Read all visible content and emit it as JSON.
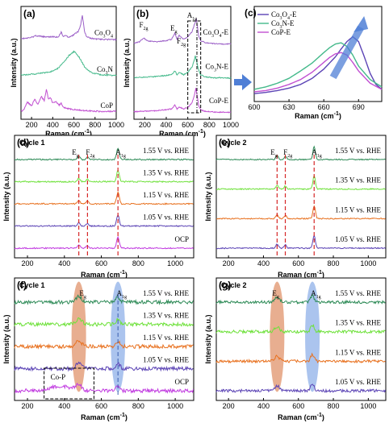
{
  "colors": {
    "purple": "#9b5fc7",
    "green": "#43b98a",
    "magenta": "#c14fd1",
    "dgreen": "#2e8b57",
    "lgreen": "#6ee13a",
    "orange": "#e8711f",
    "indigo": "#5b43b5",
    "violet": "#c13be0",
    "blue_arrow": "#4f7fd6",
    "red_dash": "#d62728",
    "ellipse_orange": "#e0936b",
    "ellipse_blue": "#8fb0e8"
  },
  "chart_data": [
    {
      "id": "a",
      "type": "line",
      "panel_letter": "(a)",
      "xlabel": "Raman (cm",
      "xlabel_sup": "-1",
      "xlabel_end": ")",
      "ylabel": "Intensity (a.u.)",
      "xlim": [
        100,
        1000
      ],
      "xticks": [
        200,
        400,
        600,
        800,
        1000
      ],
      "series": [
        {
          "name": "Co3O4",
          "name_main": "Co",
          "name_sub1": "3",
          "name_mid": "O",
          "name_sub2": "4",
          "color": "purple",
          "offset": 2.0,
          "x": [
            100,
            150,
            200,
            250,
            300,
            350,
            400,
            450,
            480,
            500,
            520,
            550,
            600,
            640,
            660,
            680,
            690,
            700,
            720,
            750,
            800,
            850,
            900,
            950,
            1000
          ],
          "y": [
            0.05,
            0.08,
            0.12,
            0.18,
            0.15,
            0.12,
            0.14,
            0.12,
            0.32,
            0.15,
            0.2,
            0.12,
            0.22,
            0.35,
            0.55,
            1.0,
            0.7,
            0.35,
            0.15,
            0.08,
            0.05,
            0.03,
            0.02,
            0.02,
            0.02
          ]
        },
        {
          "name": "Co3N",
          "name_main": "Co",
          "name_sub1": "3",
          "name_mid": "N",
          "name_sub2": "",
          "color": "green",
          "offset": 1.0,
          "x": [
            100,
            150,
            200,
            250,
            300,
            350,
            400,
            450,
            500,
            550,
            580,
            600,
            620,
            650,
            680,
            700,
            750,
            800,
            850,
            900,
            950,
            1000
          ],
          "y": [
            0.05,
            0.06,
            0.08,
            0.1,
            0.12,
            0.15,
            0.2,
            0.3,
            0.5,
            0.75,
            0.85,
            0.9,
            0.85,
            0.7,
            0.5,
            0.35,
            0.18,
            0.1,
            0.06,
            0.05,
            0.04,
            0.04
          ]
        },
        {
          "name": "CoP",
          "name_main": "Co",
          "name_sub1": "",
          "name_mid": "P",
          "name_sub2": "",
          "color": "magenta",
          "offset": 0.0,
          "x": [
            100,
            130,
            160,
            200,
            230,
            260,
            290,
            320,
            340,
            360,
            380,
            400,
            430,
            460,
            480,
            500,
            550,
            600,
            650,
            700,
            750,
            800,
            850,
            900,
            950,
            1000
          ],
          "y": [
            0.05,
            0.12,
            0.4,
            0.25,
            0.5,
            0.3,
            0.6,
            0.45,
            0.85,
            0.5,
            0.55,
            0.35,
            0.42,
            0.28,
            0.35,
            0.2,
            0.15,
            0.12,
            0.1,
            0.08,
            0.07,
            0.06,
            0.05,
            0.05,
            0.05,
            0.05
          ]
        }
      ]
    },
    {
      "id": "b",
      "type": "line",
      "panel_letter": "(b)",
      "xlabel": "Raman (cm",
      "xlabel_sup": "-1",
      "xlabel_end": ")",
      "ylabel": "Intensity (a.u.)",
      "xlim": [
        100,
        1000
      ],
      "xticks": [
        200,
        400,
        600,
        800,
        1000
      ],
      "peak_labels": [
        "F",
        "2g",
        "E",
        "g",
        "F",
        "2g",
        "A",
        "1g"
      ],
      "series": [
        {
          "name": "Co3O4-E",
          "name_main": "Co",
          "name_sub1": "3",
          "name_mid": "O",
          "name_sub2": "4",
          "name_end": "-E",
          "color": "purple",
          "offset": 2.0,
          "x": [
            100,
            150,
            190,
            220,
            260,
            300,
            350,
            400,
            450,
            480,
            500,
            520,
            560,
            600,
            640,
            660,
            680,
            690,
            700,
            720,
            760,
            800,
            850,
            900,
            950,
            1000
          ],
          "y": [
            0.05,
            0.1,
            0.25,
            0.15,
            0.12,
            0.1,
            0.12,
            0.15,
            0.2,
            0.45,
            0.2,
            0.35,
            0.2,
            0.3,
            0.5,
            0.75,
            1.0,
            0.7,
            0.35,
            0.15,
            0.07,
            0.05,
            0.03,
            0.02,
            0.02,
            0.02
          ]
        },
        {
          "name": "Co3N-E",
          "name_main": "Co",
          "name_sub1": "3",
          "name_mid": "N",
          "name_sub2": "",
          "name_end": "-E",
          "color": "green",
          "offset": 1.0,
          "x": [
            100,
            150,
            200,
            250,
            300,
            350,
            400,
            450,
            480,
            500,
            520,
            560,
            600,
            640,
            660,
            670,
            680,
            700,
            720,
            760,
            800,
            850,
            900,
            950,
            1000
          ],
          "y": [
            0.04,
            0.05,
            0.06,
            0.07,
            0.08,
            0.1,
            0.12,
            0.15,
            0.3,
            0.15,
            0.25,
            0.15,
            0.25,
            0.45,
            0.7,
            0.9,
            0.7,
            0.35,
            0.15,
            0.07,
            0.05,
            0.03,
            0.03,
            0.02,
            0.02
          ]
        },
        {
          "name": "CoP-E",
          "name_main": "Co",
          "name_sub1": "",
          "name_mid": "P",
          "name_sub2": "",
          "name_end": "-E",
          "color": "magenta",
          "offset": 0.0,
          "x": [
            100,
            150,
            200,
            250,
            300,
            350,
            400,
            450,
            480,
            500,
            520,
            560,
            600,
            640,
            660,
            675,
            690,
            700,
            720,
            760,
            800,
            850,
            900,
            950,
            1000
          ],
          "y": [
            0.04,
            0.05,
            0.06,
            0.07,
            0.08,
            0.1,
            0.12,
            0.15,
            0.3,
            0.15,
            0.22,
            0.15,
            0.2,
            0.4,
            0.65,
            0.95,
            0.6,
            0.3,
            0.12,
            0.06,
            0.04,
            0.03,
            0.02,
            0.02,
            0.02
          ]
        }
      ]
    },
    {
      "id": "c",
      "type": "line",
      "panel_letter": "(c)",
      "xlabel": "Raman (cm",
      "xlabel_sup": "-1",
      "xlabel_end": ")",
      "xlim": [
        600,
        710
      ],
      "xticks": [
        600,
        630,
        660,
        690
      ],
      "legend_position": "top-left",
      "series": [
        {
          "name": "Co3O4-E",
          "name_main": "Co",
          "name_sub1": "3",
          "name_mid": "O",
          "name_sub2": "4",
          "name_end": "-E",
          "color": "indigo",
          "x": [
            600,
            610,
            620,
            630,
            640,
            650,
            660,
            670,
            675,
            680,
            685,
            690,
            695,
            700,
            705,
            710
          ],
          "y": [
            0.05,
            0.07,
            0.1,
            0.14,
            0.2,
            0.3,
            0.45,
            0.65,
            0.78,
            0.9,
            0.98,
            0.9,
            0.65,
            0.38,
            0.2,
            0.12
          ]
        },
        {
          "name": "Co3N-E",
          "name_main": "Co",
          "name_sub1": "3",
          "name_mid": "N",
          "name_sub2": "",
          "name_end": "-E",
          "color": "green",
          "x": [
            600,
            610,
            620,
            630,
            640,
            650,
            660,
            665,
            670,
            675,
            680,
            685,
            690,
            700,
            710
          ],
          "y": [
            0.12,
            0.16,
            0.22,
            0.3,
            0.42,
            0.55,
            0.72,
            0.8,
            0.86,
            0.88,
            0.82,
            0.68,
            0.5,
            0.28,
            0.16
          ]
        },
        {
          "name": "CoP-E",
          "name_main": "Co",
          "name_sub1": "",
          "name_mid": "P",
          "name_sub2": "",
          "name_end": "-E",
          "color": "magenta",
          "x": [
            600,
            610,
            620,
            630,
            640,
            650,
            660,
            665,
            670,
            675,
            680,
            685,
            690,
            700,
            710
          ],
          "y": [
            0.08,
            0.1,
            0.14,
            0.2,
            0.28,
            0.4,
            0.56,
            0.64,
            0.7,
            0.72,
            0.68,
            0.56,
            0.42,
            0.22,
            0.12
          ]
        }
      ]
    },
    {
      "id": "d",
      "type": "line",
      "panel_letter": "(d)",
      "cycle_label": "Cycle 1",
      "xlabel": "Raman (cm",
      "xlabel_sup": "-1",
      "xlabel_end": ")",
      "ylabel": "Intensity (a.u.)",
      "xlim": [
        130,
        1100
      ],
      "xticks": [
        200,
        400,
        600,
        800,
        1000
      ],
      "peak_labels": [
        "E",
        "g",
        "F",
        "2g",
        "A",
        "1g"
      ],
      "peak_lines_x": [
        478,
        525,
        690
      ],
      "series": [
        {
          "name": "1.55 V vs. RHE",
          "color": "dgreen"
        },
        {
          "name": "1.35 V vs. RHE",
          "color": "lgreen"
        },
        {
          "name": "1.15 V vs. RHE",
          "color": "orange"
        },
        {
          "name": "1.05 V vs. RHE",
          "color": "indigo"
        },
        {
          "name": "OCP",
          "color": "violet"
        }
      ]
    },
    {
      "id": "e",
      "type": "line",
      "panel_letter": "(e)",
      "cycle_label": "Cycle 2",
      "xlabel": "Raman (cm",
      "xlabel_sup": "-1",
      "xlabel_end": ")",
      "ylabel": "Intensity (a.u.)",
      "xlim": [
        130,
        1100
      ],
      "xticks": [
        200,
        400,
        600,
        800,
        1000
      ],
      "peak_labels": [
        "E",
        "g",
        "F",
        "2g",
        "A",
        "1g"
      ],
      "peak_lines_x": [
        478,
        525,
        690
      ],
      "series": [
        {
          "name": "1.55 V vs. RHE",
          "color": "dgreen"
        },
        {
          "name": "1.35 V vs. RHE",
          "color": "lgreen"
        },
        {
          "name": "1.15 V vs. RHE",
          "color": "orange"
        },
        {
          "name": "1.05 V vs. RHE",
          "color": "indigo"
        }
      ]
    },
    {
      "id": "f",
      "type": "line",
      "panel_letter": "(f)",
      "cycle_label": "Cycle 1",
      "xlabel": "Raman (cm",
      "xlabel_sup": "-1",
      "xlabel_end": ")",
      "ylabel": "Intensity (a.u.)",
      "xlim": [
        130,
        1100
      ],
      "xticks": [
        200,
        400,
        600,
        800,
        1000
      ],
      "peak_labels": [
        "E",
        "g",
        "A",
        "1g"
      ],
      "annotation": "Co-P",
      "series": [
        {
          "name": "1.55 V vs. RHE",
          "color": "dgreen"
        },
        {
          "name": "1.35 V vs. RHE",
          "color": "lgreen"
        },
        {
          "name": "1.15 V vs. RHE",
          "color": "orange"
        },
        {
          "name": "1.05 V vs. RHE",
          "color": "indigo"
        },
        {
          "name": "OCP",
          "color": "violet"
        }
      ]
    },
    {
      "id": "g",
      "type": "line",
      "panel_letter": "(g)",
      "cycle_label": "Cycle 2",
      "xlabel": "Raman (cm",
      "xlabel_sup": "-1",
      "xlabel_end": ")",
      "ylabel": "Intensity (a.u.)",
      "xlim": [
        130,
        1100
      ],
      "xticks": [
        200,
        400,
        600,
        800,
        1000
      ],
      "peak_labels": [
        "E",
        "g",
        "A",
        "1g"
      ],
      "series": [
        {
          "name": "1.55 V vs. RHE",
          "color": "dgreen"
        },
        {
          "name": "1.35 V vs. RHE",
          "color": "lgreen"
        },
        {
          "name": "1.15 V vs. RHE",
          "color": "orange"
        },
        {
          "name": "1.05 V vs. RHE",
          "color": "indigo"
        }
      ]
    }
  ]
}
